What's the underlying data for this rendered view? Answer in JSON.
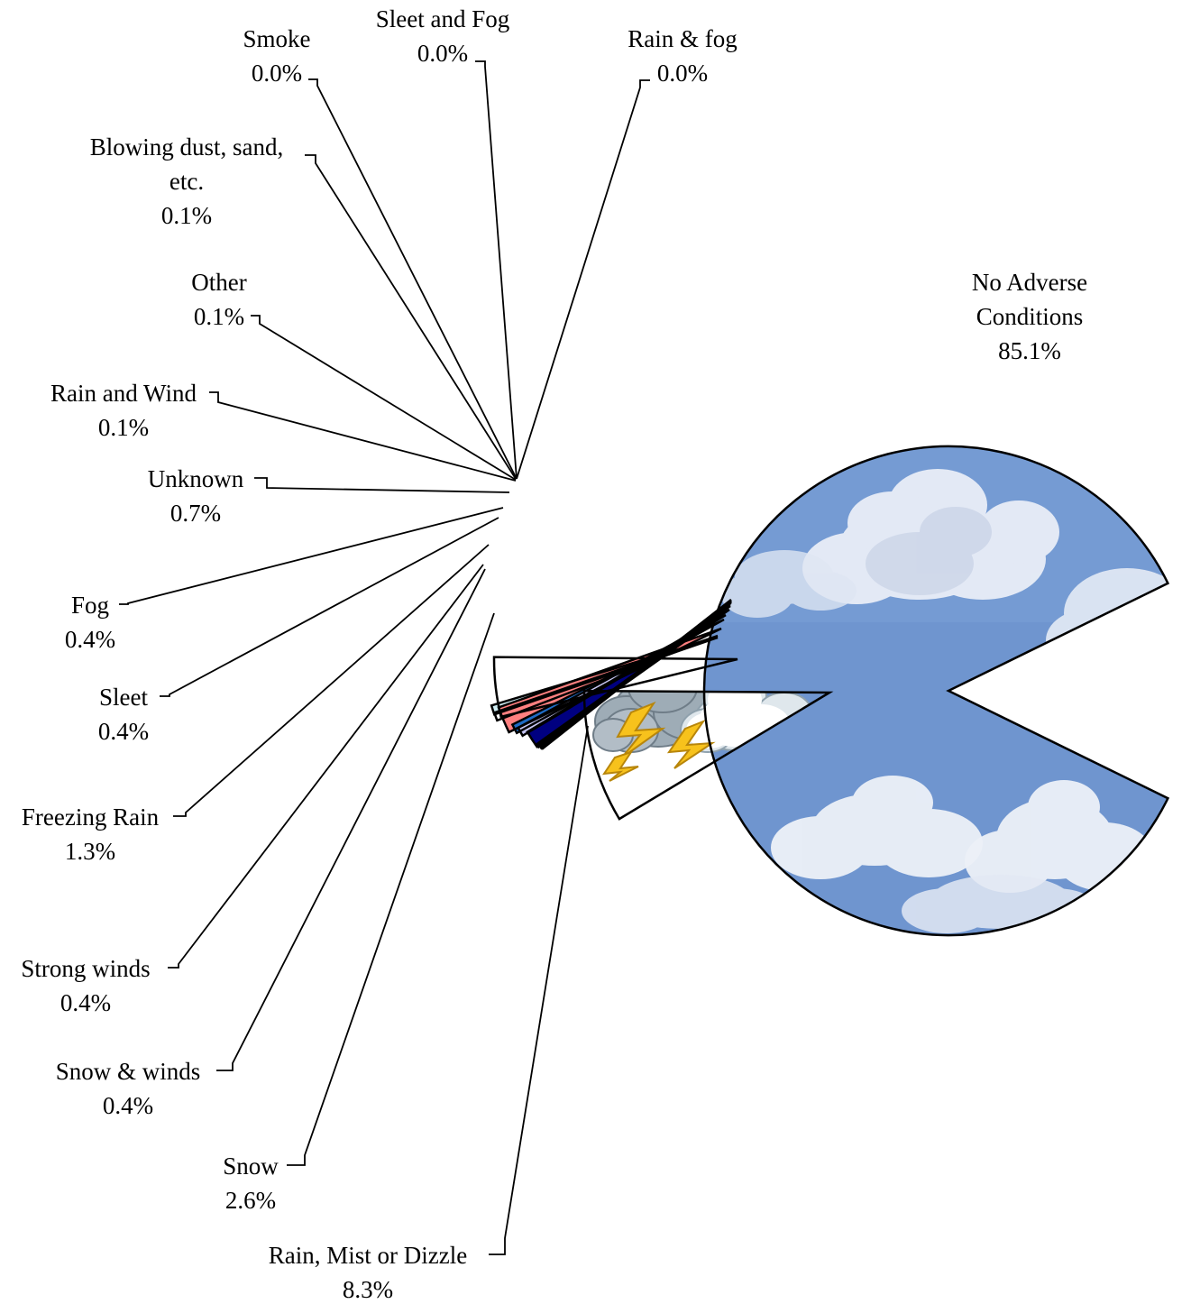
{
  "chart_data": {
    "type": "pie",
    "title": "",
    "exploded": true,
    "slices": [
      {
        "label": "No Adverse Conditions",
        "value_label": "85.1%",
        "value": 85.1,
        "fill": "sky-clouds",
        "color": "#6f95cf"
      },
      {
        "label": "Rain, Mist or Dizzle",
        "value_label": "8.3%",
        "value": 8.3,
        "fill": "storm-clouds",
        "color": "#ffffff"
      },
      {
        "label": "Snow",
        "value_label": "2.6%",
        "value": 2.6,
        "fill": "snow-clouds",
        "color": "#ffffff"
      },
      {
        "label": "Snow & winds",
        "value_label": "0.4%",
        "value": 0.4,
        "color": "#cfeef4"
      },
      {
        "label": "Strong winds",
        "value_label": "0.4%",
        "value": 0.4,
        "color": "#ffffff"
      },
      {
        "label": "Freezing Rain",
        "value_label": "1.3%",
        "value": 1.3,
        "color": "#ff8080"
      },
      {
        "label": "Sleet",
        "value_label": "0.4%",
        "value": 0.4,
        "color": "#1f6bc4"
      },
      {
        "label": "Fog",
        "value_label": "0.4%",
        "value": 0.4,
        "color": "#c6c6f2"
      },
      {
        "label": "Unknown",
        "value_label": "0.7%",
        "value": 0.7,
        "color": "#000080"
      },
      {
        "label": "Rain and Wind",
        "value_label": "0.1%",
        "value": 0.1,
        "color": "#ffffff"
      },
      {
        "label": "Other",
        "value_label": "0.1%",
        "value": 0.1,
        "color": "#ffffff"
      },
      {
        "label": "Blowing dust, sand, etc.",
        "value_label": "0.1%",
        "value": 0.1,
        "color": "#ffffff"
      },
      {
        "label": "Smoke",
        "value_label": "0.0%",
        "value": 0.0,
        "color": "#ffffff"
      },
      {
        "label": "Sleet and Fog",
        "value_label": "0.0%",
        "value": 0.0,
        "color": "#ffffff"
      },
      {
        "label": "Rain & fog",
        "value_label": "0.0%",
        "value": 0.0,
        "color": "#ffffff"
      }
    ]
  }
}
